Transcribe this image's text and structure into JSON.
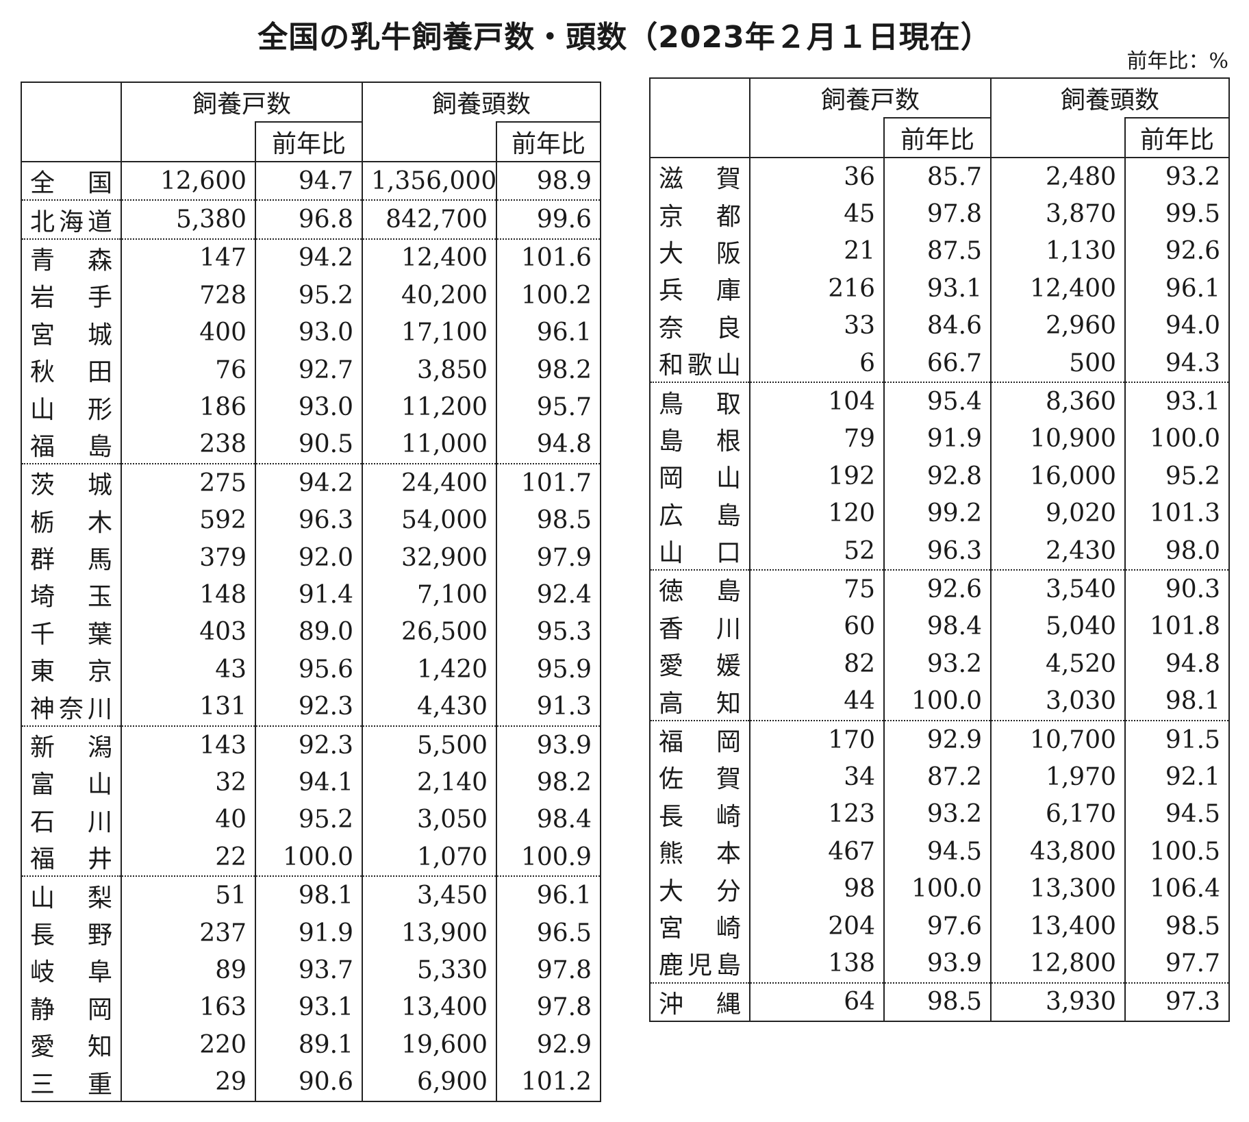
{
  "title": "全国の乳牛飼養戸数・頭数（2023年２月１日現在）",
  "unit_note": "前年比：%",
  "headers": {
    "farms": "飼養戸数",
    "head": "飼養頭数",
    "yoy": "前年比"
  },
  "left_table": {
    "rows": [
      {
        "name": "全　国",
        "farms": "12,600",
        "farms_yoy": "94.7",
        "head": "1,356,000",
        "head_yoy": "98.9"
      },
      {
        "name": "北海道",
        "farms": "5,380",
        "farms_yoy": "96.8",
        "head": "842,700",
        "head_yoy": "99.6"
      },
      {
        "name": "青　森",
        "farms": "147",
        "farms_yoy": "94.2",
        "head": "12,400",
        "head_yoy": "101.6"
      },
      {
        "name": "岩　手",
        "farms": "728",
        "farms_yoy": "95.2",
        "head": "40,200",
        "head_yoy": "100.2"
      },
      {
        "name": "宮　城",
        "farms": "400",
        "farms_yoy": "93.0",
        "head": "17,100",
        "head_yoy": "96.1"
      },
      {
        "name": "秋　田",
        "farms": "76",
        "farms_yoy": "92.7",
        "head": "3,850",
        "head_yoy": "98.2"
      },
      {
        "name": "山　形",
        "farms": "186",
        "farms_yoy": "93.0",
        "head": "11,200",
        "head_yoy": "95.7"
      },
      {
        "name": "福　島",
        "farms": "238",
        "farms_yoy": "90.5",
        "head": "11,000",
        "head_yoy": "94.8"
      },
      {
        "name": "茨　城",
        "farms": "275",
        "farms_yoy": "94.2",
        "head": "24,400",
        "head_yoy": "101.7"
      },
      {
        "name": "栃　木",
        "farms": "592",
        "farms_yoy": "96.3",
        "head": "54,000",
        "head_yoy": "98.5"
      },
      {
        "name": "群　馬",
        "farms": "379",
        "farms_yoy": "92.0",
        "head": "32,900",
        "head_yoy": "97.9"
      },
      {
        "name": "埼　玉",
        "farms": "148",
        "farms_yoy": "91.4",
        "head": "7,100",
        "head_yoy": "92.4"
      },
      {
        "name": "千　葉",
        "farms": "403",
        "farms_yoy": "89.0",
        "head": "26,500",
        "head_yoy": "95.3"
      },
      {
        "name": "東　京",
        "farms": "43",
        "farms_yoy": "95.6",
        "head": "1,420",
        "head_yoy": "95.9"
      },
      {
        "name": "神奈川",
        "farms": "131",
        "farms_yoy": "92.3",
        "head": "4,430",
        "head_yoy": "91.3"
      },
      {
        "name": "新　潟",
        "farms": "143",
        "farms_yoy": "92.3",
        "head": "5,500",
        "head_yoy": "93.9"
      },
      {
        "name": "富　山",
        "farms": "32",
        "farms_yoy": "94.1",
        "head": "2,140",
        "head_yoy": "98.2"
      },
      {
        "name": "石　川",
        "farms": "40",
        "farms_yoy": "95.2",
        "head": "3,050",
        "head_yoy": "98.4"
      },
      {
        "name": "福　井",
        "farms": "22",
        "farms_yoy": "100.0",
        "head": "1,070",
        "head_yoy": "100.9"
      },
      {
        "name": "山　梨",
        "farms": "51",
        "farms_yoy": "98.1",
        "head": "3,450",
        "head_yoy": "96.1"
      },
      {
        "name": "長　野",
        "farms": "237",
        "farms_yoy": "91.9",
        "head": "13,900",
        "head_yoy": "96.5"
      },
      {
        "name": "岐　阜",
        "farms": "89",
        "farms_yoy": "93.7",
        "head": "5,330",
        "head_yoy": "97.8"
      },
      {
        "name": "静　岡",
        "farms": "163",
        "farms_yoy": "93.1",
        "head": "13,400",
        "head_yoy": "97.8"
      },
      {
        "name": "愛　知",
        "farms": "220",
        "farms_yoy": "89.1",
        "head": "19,600",
        "head_yoy": "92.9"
      },
      {
        "name": "三　重",
        "farms": "29",
        "farms_yoy": "90.6",
        "head": "6,900",
        "head_yoy": "101.2"
      }
    ]
  },
  "right_table": {
    "rows": [
      {
        "name": "滋　賀",
        "farms": "36",
        "farms_yoy": "85.7",
        "head": "2,480",
        "head_yoy": "93.2"
      },
      {
        "name": "京　都",
        "farms": "45",
        "farms_yoy": "97.8",
        "head": "3,870",
        "head_yoy": "99.5"
      },
      {
        "name": "大　阪",
        "farms": "21",
        "farms_yoy": "87.5",
        "head": "1,130",
        "head_yoy": "92.6"
      },
      {
        "name": "兵　庫",
        "farms": "216",
        "farms_yoy": "93.1",
        "head": "12,400",
        "head_yoy": "96.1"
      },
      {
        "name": "奈　良",
        "farms": "33",
        "farms_yoy": "84.6",
        "head": "2,960",
        "head_yoy": "94.0"
      },
      {
        "name": "和歌山",
        "farms": "6",
        "farms_yoy": "66.7",
        "head": "500",
        "head_yoy": "94.3"
      },
      {
        "name": "鳥　取",
        "farms": "104",
        "farms_yoy": "95.4",
        "head": "8,360",
        "head_yoy": "93.1"
      },
      {
        "name": "島　根",
        "farms": "79",
        "farms_yoy": "91.9",
        "head": "10,900",
        "head_yoy": "100.0"
      },
      {
        "name": "岡　山",
        "farms": "192",
        "farms_yoy": "92.8",
        "head": "16,000",
        "head_yoy": "95.2"
      },
      {
        "name": "広　島",
        "farms": "120",
        "farms_yoy": "99.2",
        "head": "9,020",
        "head_yoy": "101.3"
      },
      {
        "name": "山　口",
        "farms": "52",
        "farms_yoy": "96.3",
        "head": "2,430",
        "head_yoy": "98.0"
      },
      {
        "name": "徳　島",
        "farms": "75",
        "farms_yoy": "92.6",
        "head": "3,540",
        "head_yoy": "90.3"
      },
      {
        "name": "香　川",
        "farms": "60",
        "farms_yoy": "98.4",
        "head": "5,040",
        "head_yoy": "101.8"
      },
      {
        "name": "愛　媛",
        "farms": "82",
        "farms_yoy": "93.2",
        "head": "4,520",
        "head_yoy": "94.8"
      },
      {
        "name": "高　知",
        "farms": "44",
        "farms_yoy": "100.0",
        "head": "3,030",
        "head_yoy": "98.1"
      },
      {
        "name": "福　岡",
        "farms": "170",
        "farms_yoy": "92.9",
        "head": "10,700",
        "head_yoy": "91.5"
      },
      {
        "name": "佐　賀",
        "farms": "34",
        "farms_yoy": "87.2",
        "head": "1,970",
        "head_yoy": "92.1"
      },
      {
        "name": "長　崎",
        "farms": "123",
        "farms_yoy": "93.2",
        "head": "6,170",
        "head_yoy": "94.5"
      },
      {
        "name": "熊　本",
        "farms": "467",
        "farms_yoy": "94.5",
        "head": "43,800",
        "head_yoy": "100.5"
      },
      {
        "name": "大　分",
        "farms": "98",
        "farms_yoy": "100.0",
        "head": "13,300",
        "head_yoy": "106.4"
      },
      {
        "name": "宮　崎",
        "farms": "204",
        "farms_yoy": "97.6",
        "head": "13,400",
        "head_yoy": "98.5"
      },
      {
        "name": "鹿児島",
        "farms": "138",
        "farms_yoy": "93.9",
        "head": "12,800",
        "head_yoy": "97.7"
      },
      {
        "name": "沖　縄",
        "farms": "64",
        "farms_yoy": "98.5",
        "head": "3,930",
        "head_yoy": "97.3"
      }
    ]
  }
}
